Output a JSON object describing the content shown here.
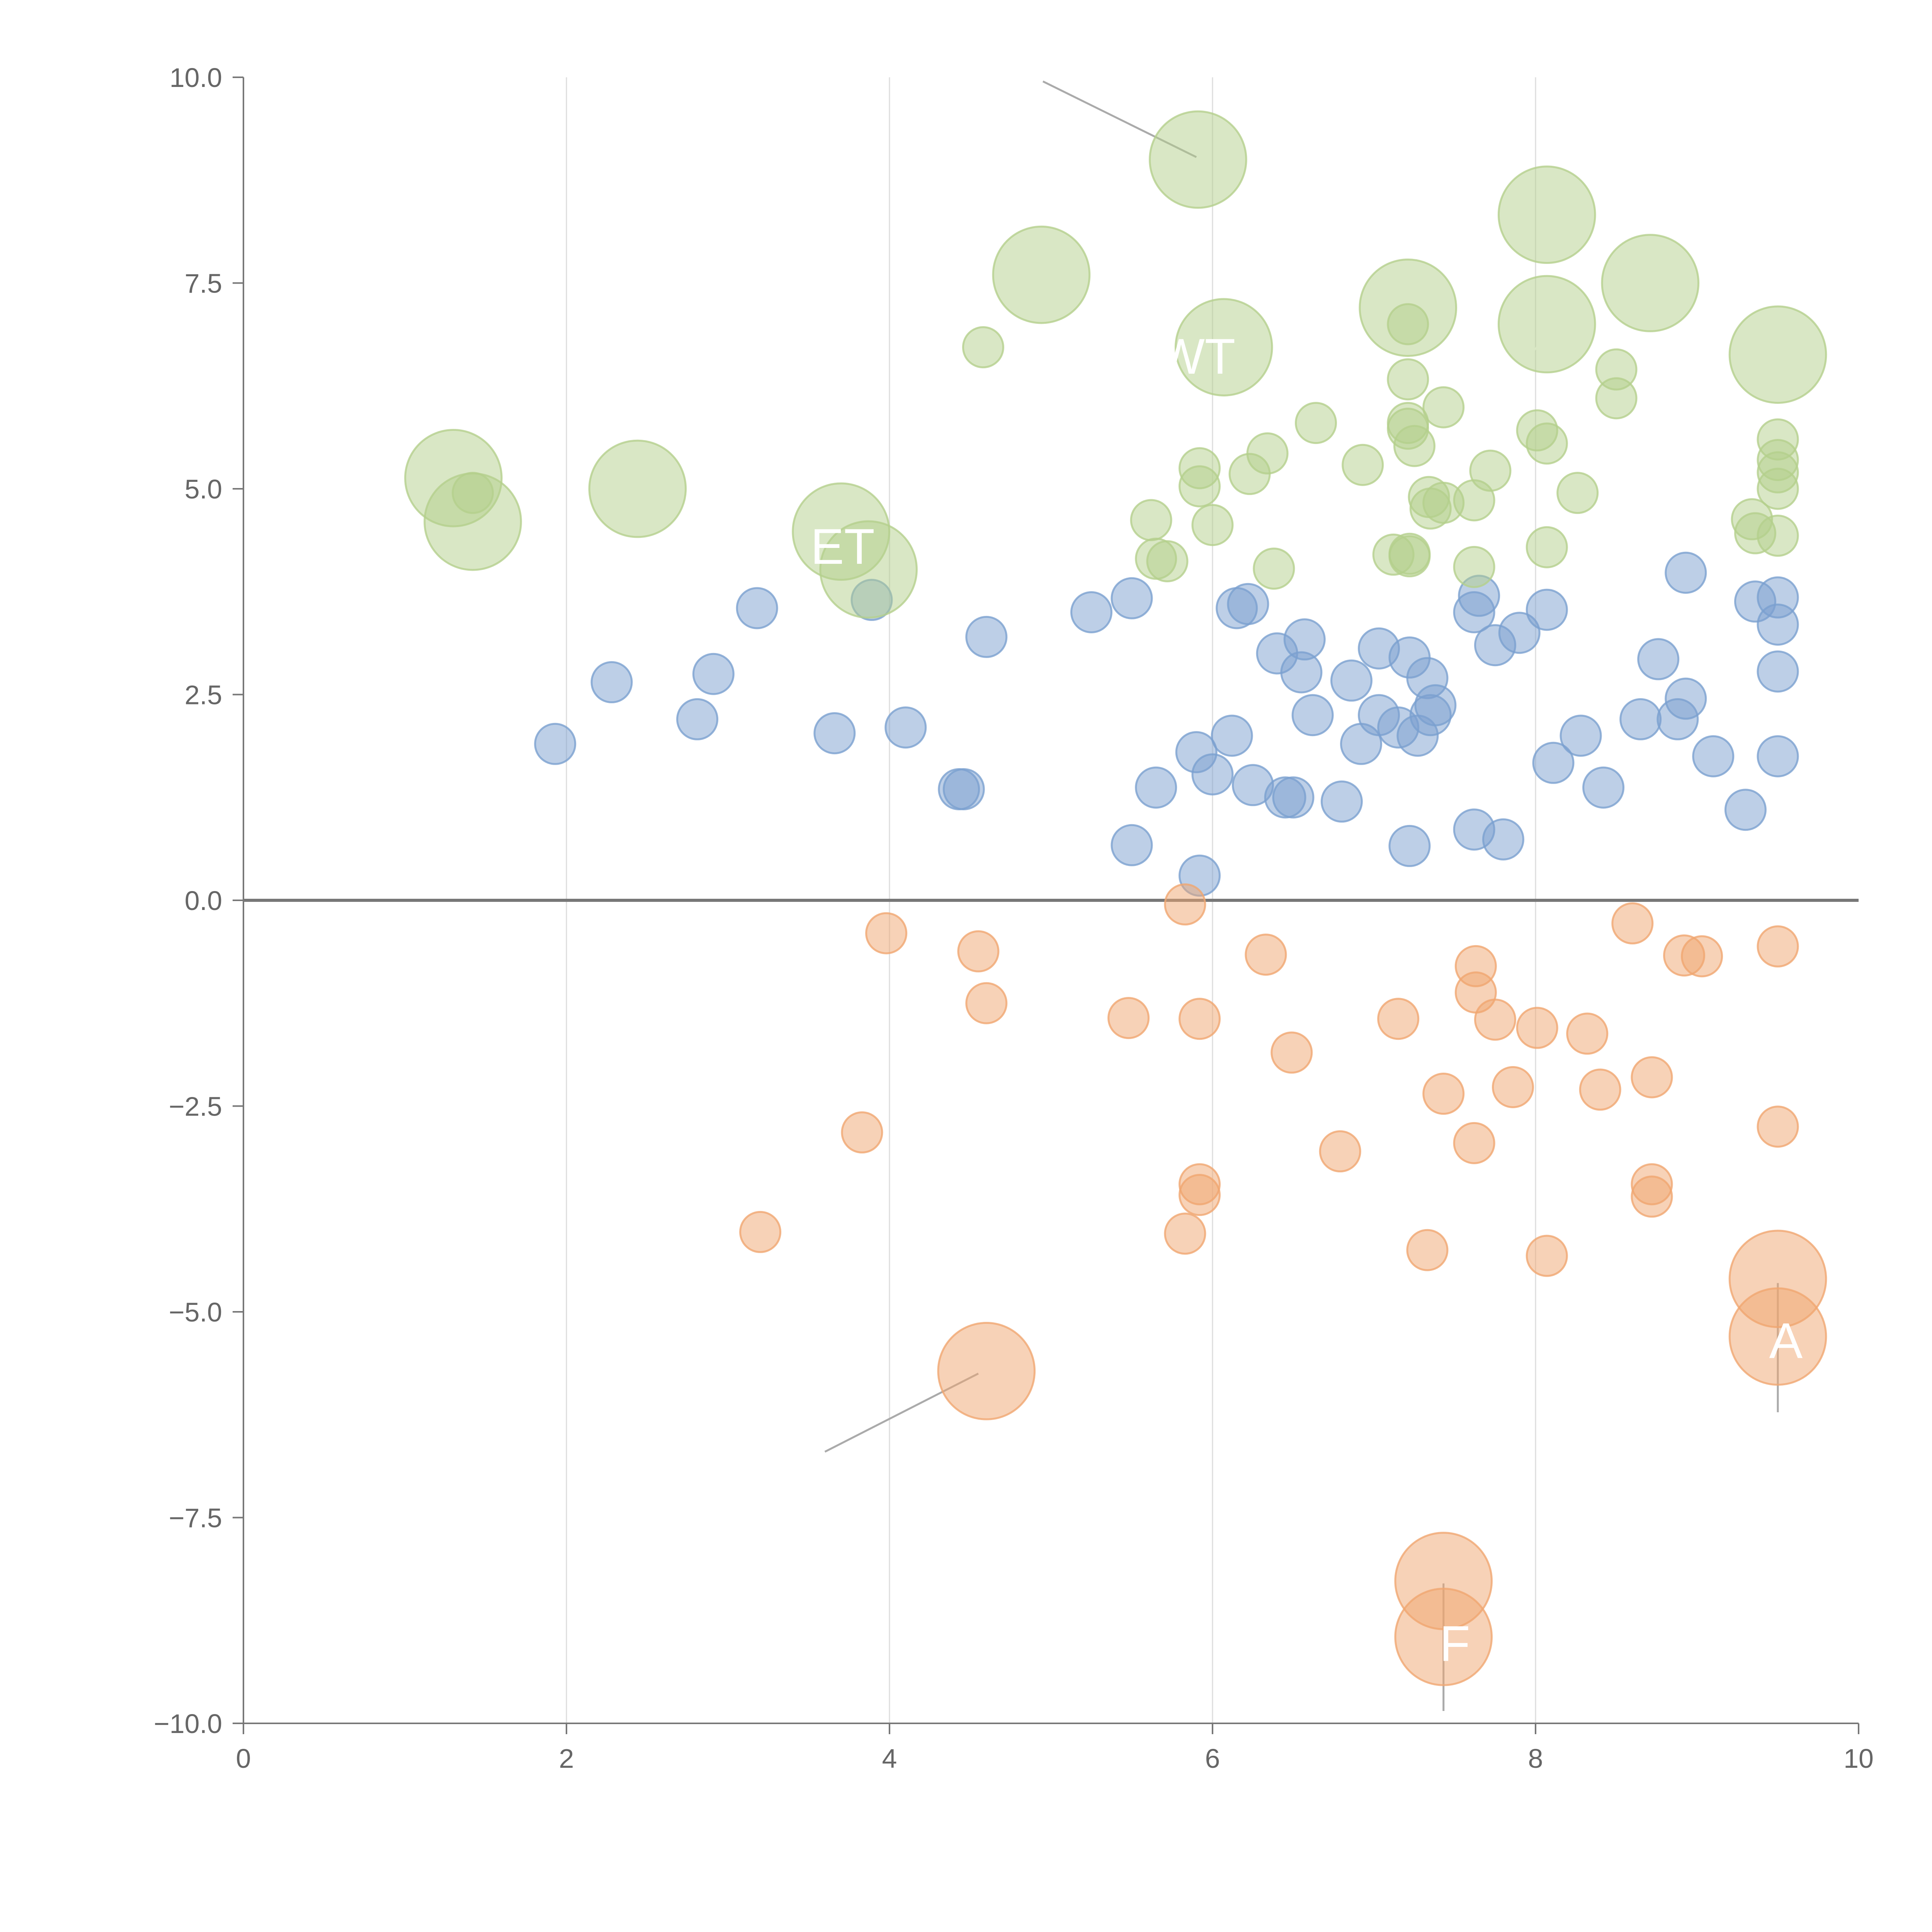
{
  "colors": {
    "positive": "#7ba0d0",
    "negative": "#f0a670",
    "top": "#b4d08c",
    "axis": "#777777",
    "grid": "#dddddd",
    "tick_text": "#666666",
    "leader": "#aaaaaa",
    "label": "#ffffff"
  },
  "chart_data": {
    "type": "scatter",
    "title": "",
    "xlabel": "",
    "ylabel": "",
    "xlim": [
      0,
      10
    ],
    "ylim": [
      -10,
      10
    ],
    "grid": "vertical",
    "zero_line": true,
    "x_ticks": [
      "0",
      "2",
      "4",
      "6",
      "8",
      "10"
    ],
    "y_ticks": [
      "10.0",
      "7.5",
      "5.0",
      "2.5",
      "0.0",
      "−2.5",
      "−5.0",
      "−7.5",
      "−10.0"
    ],
    "x_tick_values": [
      0,
      2,
      4,
      6,
      8,
      10
    ],
    "y_tick_values": [
      10,
      7.5,
      5,
      2.5,
      0,
      -2.5,
      -5,
      -7.5,
      -10
    ],
    "size_note": "bubble radius in units of the small marker radius",
    "series": [
      {
        "name": "blue",
        "color_key": "positive",
        "points": [
          [
            1.93,
            1.9,
            1
          ],
          [
            2.28,
            2.65,
            1
          ],
          [
            2.81,
            2.2,
            1
          ],
          [
            2.91,
            2.75,
            1
          ],
          [
            3.18,
            3.55,
            1
          ],
          [
            3.66,
            2.03,
            1
          ],
          [
            3.89,
            3.65,
            1
          ],
          [
            4.1,
            2.1,
            1
          ],
          [
            4.43,
            1.35,
            1
          ],
          [
            4.46,
            1.35,
            1
          ],
          [
            4.6,
            3.2,
            1
          ],
          [
            5.25,
            3.5,
            1
          ],
          [
            5.5,
            3.67,
            1
          ],
          [
            5.5,
            0.67,
            1
          ],
          [
            5.65,
            1.37,
            1
          ],
          [
            5.9,
            1.8,
            1
          ],
          [
            5.92,
            0.3,
            1
          ],
          [
            6.0,
            1.53,
            1
          ],
          [
            6.12,
            2.0,
            1
          ],
          [
            6.15,
            3.55,
            1
          ],
          [
            6.22,
            3.6,
            1
          ],
          [
            6.25,
            1.4,
            1
          ],
          [
            6.4,
            3.0,
            1
          ],
          [
            6.45,
            1.25,
            1
          ],
          [
            6.5,
            1.25,
            1
          ],
          [
            6.55,
            2.77,
            1
          ],
          [
            6.57,
            3.17,
            1
          ],
          [
            6.62,
            2.25,
            1
          ],
          [
            6.8,
            1.2,
            1
          ],
          [
            6.86,
            2.67,
            1
          ],
          [
            6.92,
            1.9,
            1
          ],
          [
            7.03,
            3.06,
            1
          ],
          [
            7.03,
            2.25,
            1
          ],
          [
            7.15,
            2.1,
            1
          ],
          [
            7.22,
            2.95,
            1
          ],
          [
            7.22,
            0.66,
            1
          ],
          [
            7.27,
            2.0,
            1
          ],
          [
            7.33,
            2.7,
            1
          ],
          [
            7.35,
            2.25,
            1
          ],
          [
            7.38,
            2.37,
            1
          ],
          [
            7.62,
            0.86,
            1
          ],
          [
            7.62,
            3.5,
            1
          ],
          [
            7.65,
            3.7,
            1
          ],
          [
            7.75,
            3.1,
            1
          ],
          [
            7.8,
            0.74,
            1
          ],
          [
            7.9,
            3.25,
            1
          ],
          [
            8.07,
            3.53,
            1
          ],
          [
            8.11,
            1.67,
            1
          ],
          [
            8.28,
            2.0,
            1
          ],
          [
            8.42,
            1.37,
            1
          ],
          [
            8.65,
            2.2,
            1
          ],
          [
            8.76,
            2.93,
            1
          ],
          [
            8.88,
            2.2,
            1
          ],
          [
            8.93,
            3.98,
            1
          ],
          [
            8.93,
            2.45,
            1
          ],
          [
            9.1,
            1.75,
            1
          ],
          [
            9.3,
            1.1,
            1
          ],
          [
            9.36,
            3.63,
            1
          ],
          [
            9.5,
            3.68,
            1
          ],
          [
            9.5,
            3.35,
            1
          ],
          [
            9.5,
            2.78,
            1
          ],
          [
            9.5,
            1.75,
            1
          ]
        ]
      },
      {
        "name": "orange",
        "color_key": "negative",
        "points": [
          [
            3.2,
            -4.03,
            1
          ],
          [
            3.83,
            -2.82,
            1
          ],
          [
            3.98,
            -0.4,
            1
          ],
          [
            4.55,
            -0.62,
            1
          ],
          [
            4.6,
            -1.25,
            1
          ],
          [
            4.6,
            -5.72,
            2.4
          ],
          [
            5.48,
            -1.43,
            1
          ],
          [
            5.83,
            -0.05,
            1
          ],
          [
            5.83,
            -4.05,
            1
          ],
          [
            5.92,
            -1.44,
            1
          ],
          [
            5.92,
            -3.45,
            1
          ],
          [
            5.92,
            -3.58,
            1
          ],
          [
            6.33,
            -0.66,
            1
          ],
          [
            6.49,
            -1.85,
            1
          ],
          [
            6.79,
            -3.05,
            1
          ],
          [
            7.15,
            -1.44,
            1
          ],
          [
            7.33,
            -4.25,
            1
          ],
          [
            7.43,
            -2.35,
            1
          ],
          [
            7.43,
            -8.27,
            2.4
          ],
          [
            7.43,
            -8.95,
            2.4
          ],
          [
            7.62,
            -2.95,
            1
          ],
          [
            7.63,
            -0.8,
            1
          ],
          [
            7.63,
            -1.12,
            1
          ],
          [
            7.75,
            -1.45,
            1
          ],
          [
            7.86,
            -2.27,
            1
          ],
          [
            8.01,
            -1.55,
            1
          ],
          [
            8.07,
            -4.32,
            1
          ],
          [
            8.32,
            -1.62,
            1
          ],
          [
            8.4,
            -2.3,
            1
          ],
          [
            8.6,
            -0.28,
            1
          ],
          [
            8.72,
            -2.15,
            1
          ],
          [
            8.72,
            -3.45,
            1
          ],
          [
            8.72,
            -3.6,
            1
          ],
          [
            8.92,
            -0.67,
            1
          ],
          [
            9.03,
            -0.68,
            1
          ],
          [
            9.5,
            -0.56,
            1
          ],
          [
            9.5,
            -2.75,
            1
          ],
          [
            9.5,
            -4.6,
            2.4
          ],
          [
            9.5,
            -5.3,
            2.4
          ]
        ]
      },
      {
        "name": "green",
        "color_key": "top",
        "points": [
          [
            1.3,
            5.13,
            2.4
          ],
          [
            1.42,
            4.95,
            1
          ],
          [
            1.42,
            4.6,
            2.4
          ],
          [
            2.44,
            5.0,
            2.4
          ],
          [
            3.7,
            4.48,
            2.4
          ],
          [
            3.87,
            4.02,
            2.4
          ],
          [
            4.58,
            6.72,
            1
          ],
          [
            4.94,
            7.6,
            2.4
          ],
          [
            5.62,
            4.62,
            1
          ],
          [
            5.65,
            4.15,
            1
          ],
          [
            5.72,
            4.12,
            1
          ],
          [
            5.91,
            9.0,
            2.4
          ],
          [
            5.92,
            5.25,
            1
          ],
          [
            5.92,
            5.03,
            1
          ],
          [
            6.0,
            4.56,
            1
          ],
          [
            6.07,
            6.72,
            2.4
          ],
          [
            6.23,
            5.18,
            1
          ],
          [
            6.34,
            5.43,
            1
          ],
          [
            6.38,
            4.03,
            1
          ],
          [
            6.64,
            5.8,
            1
          ],
          [
            6.93,
            5.29,
            1
          ],
          [
            7.12,
            4.2,
            1
          ],
          [
            7.21,
            7.2,
            2.4
          ],
          [
            7.21,
            7.0,
            1
          ],
          [
            7.21,
            6.33,
            1
          ],
          [
            7.21,
            5.8,
            1
          ],
          [
            7.21,
            5.73,
            1
          ],
          [
            7.22,
            4.21,
            1
          ],
          [
            7.22,
            4.18,
            1
          ],
          [
            7.25,
            5.52,
            1
          ],
          [
            7.34,
            4.9,
            1
          ],
          [
            7.35,
            4.76,
            1
          ],
          [
            7.43,
            4.83,
            1
          ],
          [
            7.43,
            5.99,
            1
          ],
          [
            7.62,
            4.86,
            1
          ],
          [
            7.62,
            4.05,
            1
          ],
          [
            7.72,
            5.22,
            1
          ],
          [
            8.01,
            5.71,
            1
          ],
          [
            8.07,
            8.33,
            2.4
          ],
          [
            8.07,
            7.0,
            2.4
          ],
          [
            8.07,
            5.55,
            1
          ],
          [
            8.07,
            4.29,
            1
          ],
          [
            8.26,
            4.95,
            1
          ],
          [
            8.5,
            6.45,
            1
          ],
          [
            8.5,
            6.1,
            1
          ],
          [
            8.71,
            7.5,
            2.4
          ],
          [
            9.34,
            4.63,
            1
          ],
          [
            9.36,
            4.46,
            1
          ],
          [
            9.5,
            6.63,
            2.4
          ],
          [
            9.5,
            5.6,
            1
          ],
          [
            9.5,
            5.35,
            1
          ],
          [
            9.5,
            5.2,
            1
          ],
          [
            9.5,
            5.0,
            1
          ],
          [
            9.5,
            4.43,
            1
          ]
        ]
      }
    ],
    "labels": [
      {
        "text": "WT",
        "x": 6.07,
        "y": 6.72,
        "lx": 5.9,
        "ly": 6.61,
        "color_key": "label"
      },
      {
        "text": "ET",
        "x": 3.7,
        "y": 4.48,
        "lx": 3.71,
        "ly": 4.3,
        "color_key": "label"
      },
      {
        "text": "F",
        "x": 7.43,
        "y": -8.95,
        "lx": 7.5,
        "ly": -9.03,
        "color_key": "label"
      },
      {
        "text": "A",
        "x": 9.5,
        "y": -5.3,
        "lx": 9.55,
        "ly": -5.35,
        "color_key": "label"
      }
    ],
    "leaders": [
      {
        "x1": 4.95,
        "y1": 9.95,
        "x2": 5.9,
        "y2": 9.03,
        "color_key": "leader"
      },
      {
        "x1": 3.6,
        "y1": -6.7,
        "x2": 4.55,
        "y2": -5.75,
        "color_key": "leader"
      },
      {
        "x1": 7.43,
        "y1": -8.3,
        "x2": 7.43,
        "y2": -9.85,
        "color_key": "leader"
      },
      {
        "x1": 9.5,
        "y1": -4.65,
        "x2": 9.5,
        "y2": -6.22,
        "color_key": "leader"
      },
      {
        "x1": 4.55,
        "y1": 6.7,
        "x2": 4.63,
        "y2": 6.85,
        "color_key": "label"
      },
      {
        "x1": 7.2,
        "y1": 7.45,
        "x2": 7.23,
        "y2": 7.62,
        "color_key": "label"
      },
      {
        "x1": 8.11,
        "y1": 8.44,
        "x2": 8.27,
        "y2": 8.65,
        "color_key": "label"
      },
      {
        "x1": 7.97,
        "y1": 6.64,
        "x2": 8.07,
        "y2": 6.85,
        "color_key": "label"
      },
      {
        "x1": 9.38,
        "y1": 6.4,
        "x2": 9.5,
        "y2": 6.6,
        "color_key": "label"
      },
      {
        "x1": 1.34,
        "y1": 5.15,
        "x2": 1.5,
        "y2": 5.35,
        "color_key": "label"
      },
      {
        "x1": 2.47,
        "y1": 5.02,
        "x2": 2.6,
        "y2": 5.22,
        "color_key": "label"
      },
      {
        "x1": 4.62,
        "y1": 3.07,
        "x2": 4.8,
        "y2": 2.95,
        "color_key": "label"
      },
      {
        "x1": 4.93,
        "y1": 7.68,
        "x2": 5.01,
        "y2": 7.87,
        "color_key": "label"
      }
    ]
  }
}
